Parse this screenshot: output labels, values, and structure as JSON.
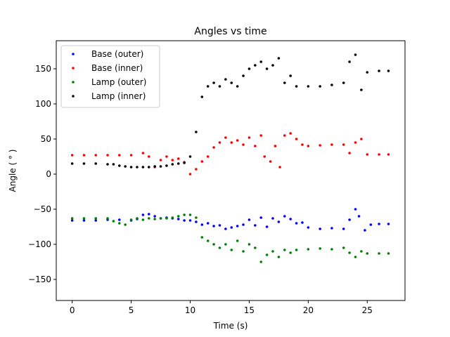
{
  "chart_data": {
    "type": "scatter",
    "title": "Angles vs time",
    "xlabel": "Time (s)",
    "ylabel": "Angle ( ° )",
    "xlim": [
      -1.35,
      28.2
    ],
    "ylim": [
      -180,
      190
    ],
    "xticks": [
      0,
      5,
      10,
      15,
      20,
      25
    ],
    "yticks": [
      -150,
      -100,
      -50,
      0,
      50,
      100,
      150
    ],
    "legend_position": "upper-left",
    "grid": false,
    "series": [
      {
        "name": "Base (outer)",
        "color": "#0000ff",
        "x": [
          0,
          1,
          2,
          3,
          4,
          5,
          5.5,
          6,
          6.5,
          7,
          7.5,
          8,
          8.5,
          9,
          9.5,
          10,
          10.5,
          11,
          11.5,
          12,
          12.5,
          13,
          13.5,
          14,
          14.5,
          15,
          15.5,
          16,
          16.5,
          17,
          17.5,
          18,
          18.5,
          19,
          19.5,
          20,
          21,
          22,
          23,
          23.5,
          24,
          24.3,
          24.8,
          25.3,
          26,
          26.8
        ],
        "y": [
          -66,
          -66,
          -66,
          -65,
          -65,
          -66,
          -64,
          -58,
          -57,
          -60,
          -63,
          -62,
          -63,
          -64,
          -66,
          -66,
          -68,
          -72,
          -70,
          -74,
          -73,
          -78,
          -76,
          -74,
          -72,
          -65,
          -73,
          -62,
          -75,
          -63,
          -68,
          -60,
          -64,
          -70,
          -69,
          -76,
          -78,
          -77,
          -78,
          -65,
          -50,
          -60,
          -80,
          -72,
          -71,
          -71
        ]
      },
      {
        "name": "Base (inner)",
        "color": "#ff0000",
        "x": [
          0,
          1,
          2,
          3,
          4,
          5,
          6,
          6.5,
          7,
          7.5,
          8,
          8.5,
          9,
          9.5,
          10,
          10.5,
          11,
          11.5,
          12,
          12.5,
          13,
          13.5,
          14,
          14.5,
          15,
          15.5,
          16,
          16.3,
          16.8,
          17.2,
          17.6,
          18,
          18.5,
          19,
          19.5,
          20,
          21,
          22,
          23,
          23.5,
          24,
          24.5,
          25,
          26,
          26.8
        ],
        "y": [
          27,
          27,
          27,
          27,
          27,
          27,
          30,
          25,
          10,
          20,
          25,
          20,
          22,
          17,
          0,
          7,
          18,
          25,
          38,
          45,
          52,
          45,
          48,
          42,
          52,
          40,
          55,
          25,
          18,
          40,
          10,
          55,
          58,
          50,
          42,
          40,
          41,
          42,
          42,
          30,
          45,
          50,
          28,
          28,
          28
        ]
      },
      {
        "name": "Lamp (outer)",
        "color": "#008000",
        "x": [
          0,
          1,
          2,
          3,
          3.5,
          4,
          4.5,
          5,
          5.5,
          6,
          6.5,
          7,
          7.5,
          8,
          8.5,
          9,
          9.5,
          10,
          10.5,
          11,
          11.5,
          12,
          12.5,
          13,
          13.5,
          14,
          14.5,
          15,
          15.5,
          16,
          16.5,
          17,
          17.5,
          18,
          18.5,
          19,
          20,
          21,
          22,
          23,
          23.5,
          24,
          24.5,
          25,
          26,
          26.8
        ],
        "y": [
          -63,
          -63,
          -63,
          -63,
          -67,
          -70,
          -72,
          -65,
          -63,
          -65,
          -63,
          -64,
          -63,
          -63,
          -62,
          -60,
          -58,
          -58,
          -62,
          -90,
          -95,
          -100,
          -105,
          -100,
          -108,
          -95,
          -110,
          -100,
          -105,
          -125,
          -115,
          -110,
          -118,
          -108,
          -112,
          -108,
          -107,
          -106,
          -107,
          -105,
          -112,
          -118,
          -110,
          -113,
          -113,
          -113
        ]
      },
      {
        "name": "Lamp (inner)",
        "color": "#000000",
        "x": [
          0,
          1,
          2,
          3,
          3.5,
          4,
          4.5,
          5,
          5.5,
          6,
          6.5,
          7,
          7.5,
          8,
          8.5,
          9,
          9.5,
          10,
          10.5,
          11,
          11.5,
          12,
          12.5,
          13,
          13.5,
          14,
          14.5,
          15,
          15.5,
          16,
          16.5,
          17,
          17.5,
          18,
          18.5,
          19,
          20,
          21,
          22,
          23,
          23.5,
          24,
          24.5,
          25,
          26,
          26.8
        ],
        "y": [
          15,
          15,
          15,
          14,
          14,
          12,
          11,
          10,
          10,
          10,
          10,
          11,
          11,
          12,
          14,
          15,
          16,
          25,
          60,
          110,
          125,
          130,
          125,
          135,
          130,
          125,
          140,
          150,
          155,
          160,
          150,
          155,
          165,
          130,
          140,
          125,
          125,
          125,
          127,
          130,
          160,
          170,
          120,
          145,
          147,
          147
        ]
      }
    ]
  }
}
